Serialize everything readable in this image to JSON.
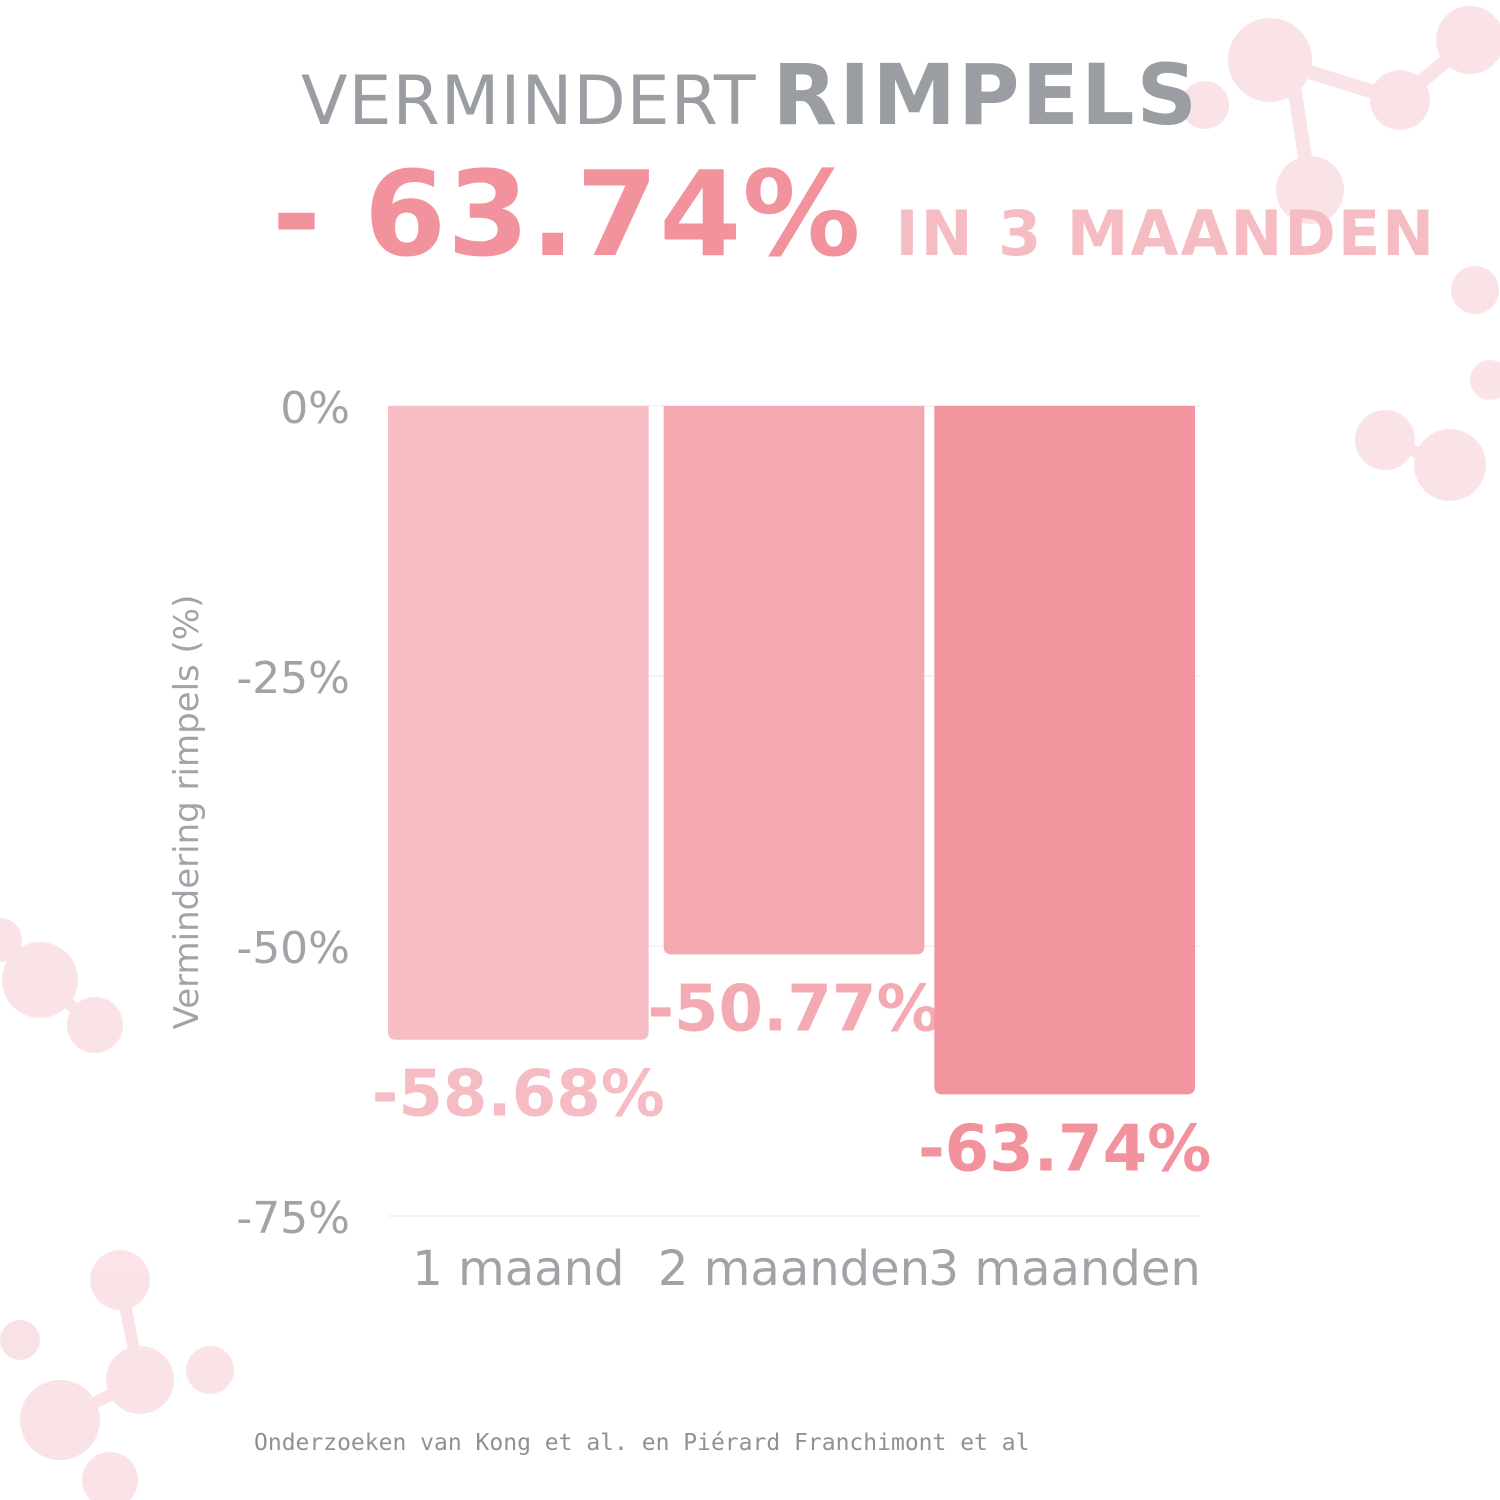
{
  "header": {
    "title_light": "VERMINDERT",
    "title_bold": "RIMPELS",
    "headline_value": "- 63.74%",
    "headline_period": "IN 3 MAANDEN"
  },
  "colors": {
    "title_gray": "#9a9ea3",
    "bar_1": "#f6bec4",
    "bar_2": "#f4a9b1",
    "bar_3": "#f2959f",
    "label_1": "#f6bcc3",
    "label_2": "#f4aab2",
    "label_3": "#f2929d",
    "axis_text": "#a0a3a7"
  },
  "chart_data": {
    "type": "bar",
    "categories": [
      "1 maand",
      "2 maanden",
      "3 maanden"
    ],
    "values": [
      -58.68,
      -50.77,
      -63.74
    ],
    "data_labels": [
      "-58.68%",
      "-50.77%",
      "-63.74%"
    ],
    "ylabel": "Vermindering rimpels (%)",
    "xlabel": "",
    "ylim": [
      -75,
      0
    ],
    "yticks": [
      0,
      -25,
      -50,
      -75
    ],
    "ytick_labels": [
      "0%",
      "-25%",
      "-50%",
      "-75%"
    ],
    "grid": true,
    "legend": "none"
  },
  "footer": {
    "source": "Onderzoeken van Kong et al. en Piérard Franchimont et al"
  }
}
